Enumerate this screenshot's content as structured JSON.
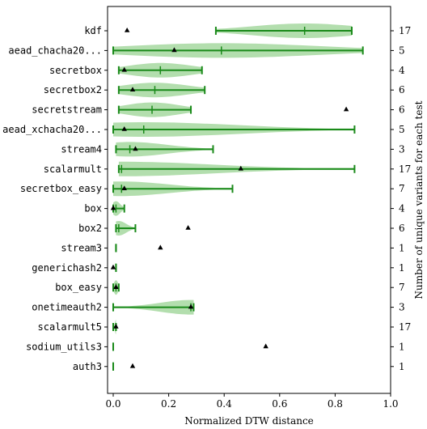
{
  "chart_data": {
    "type": "violin",
    "xlabel": "Normalized DTW distance",
    "ylabel_right": "Number of unique variants for each test",
    "xlim": [
      0.0,
      1.0
    ],
    "xticks": [
      "0.0",
      "0.2",
      "0.4",
      "0.6",
      "0.8",
      "1.0"
    ],
    "grid": false,
    "colors": {
      "violin_fill": "#a6d8a0",
      "range_line": "#1a8a1a",
      "marker": "#000000"
    },
    "tests": [
      {
        "label": "kdf",
        "variants": "17",
        "min": 0.37,
        "median": 0.69,
        "max": 0.86,
        "triangle": 0.05
      },
      {
        "label": "aead_chacha20...",
        "variants": "5",
        "min": 0.0,
        "median": 0.39,
        "max": 0.9,
        "triangle": 0.22
      },
      {
        "label": "secretbox",
        "variants": "4",
        "min": 0.02,
        "median": 0.17,
        "max": 0.32,
        "triangle": 0.04
      },
      {
        "label": "secretbox2",
        "variants": "6",
        "min": 0.02,
        "median": 0.15,
        "max": 0.33,
        "triangle": 0.07
      },
      {
        "label": "secretstream",
        "variants": "6",
        "min": 0.02,
        "median": 0.14,
        "max": 0.28,
        "triangle": 0.84
      },
      {
        "label": "aead_xchacha20...",
        "variants": "5",
        "min": 0.0,
        "median": 0.11,
        "max": 0.87,
        "triangle": 0.04
      },
      {
        "label": "stream4",
        "variants": "3",
        "min": 0.01,
        "median": 0.06,
        "max": 0.36,
        "triangle": 0.08
      },
      {
        "label": "scalarmult",
        "variants": "17",
        "min": 0.02,
        "median": 0.03,
        "max": 0.87,
        "triangle": 0.46
      },
      {
        "label": "secretbox_easy",
        "variants": "7",
        "min": 0.0,
        "median": 0.03,
        "max": 0.43,
        "triangle": 0.04
      },
      {
        "label": "box",
        "variants": "4",
        "min": 0.0,
        "median": 0.01,
        "max": 0.04,
        "triangle": 0.0
      },
      {
        "label": "box2",
        "variants": "6",
        "min": 0.01,
        "median": 0.02,
        "max": 0.08,
        "triangle": 0.27
      },
      {
        "label": "stream3",
        "variants": "1",
        "min": 0.01,
        "median": 0.01,
        "max": 0.01,
        "triangle": 0.17
      },
      {
        "label": "generichash2",
        "variants": "1",
        "min": 0.01,
        "median": 0.01,
        "max": 0.01,
        "triangle": 0.0
      },
      {
        "label": "box_easy",
        "variants": "7",
        "min": 0.0,
        "median": 0.01,
        "max": 0.02,
        "triangle": 0.01
      },
      {
        "label": "onetimeauth2",
        "variants": "3",
        "min": 0.0,
        "median": 0.28,
        "max": 0.29,
        "triangle": 0.28
      },
      {
        "label": "scalarmult5",
        "variants": "17",
        "min": 0.0,
        "median": 0.01,
        "max": 0.01,
        "triangle": 0.01
      },
      {
        "label": "sodium_utils3",
        "variants": "1",
        "min": 0.0,
        "median": 0.0,
        "max": 0.0,
        "triangle": 0.55
      },
      {
        "label": "auth3",
        "variants": "1",
        "min": 0.0,
        "median": 0.0,
        "max": 0.0,
        "triangle": 0.07
      }
    ]
  }
}
